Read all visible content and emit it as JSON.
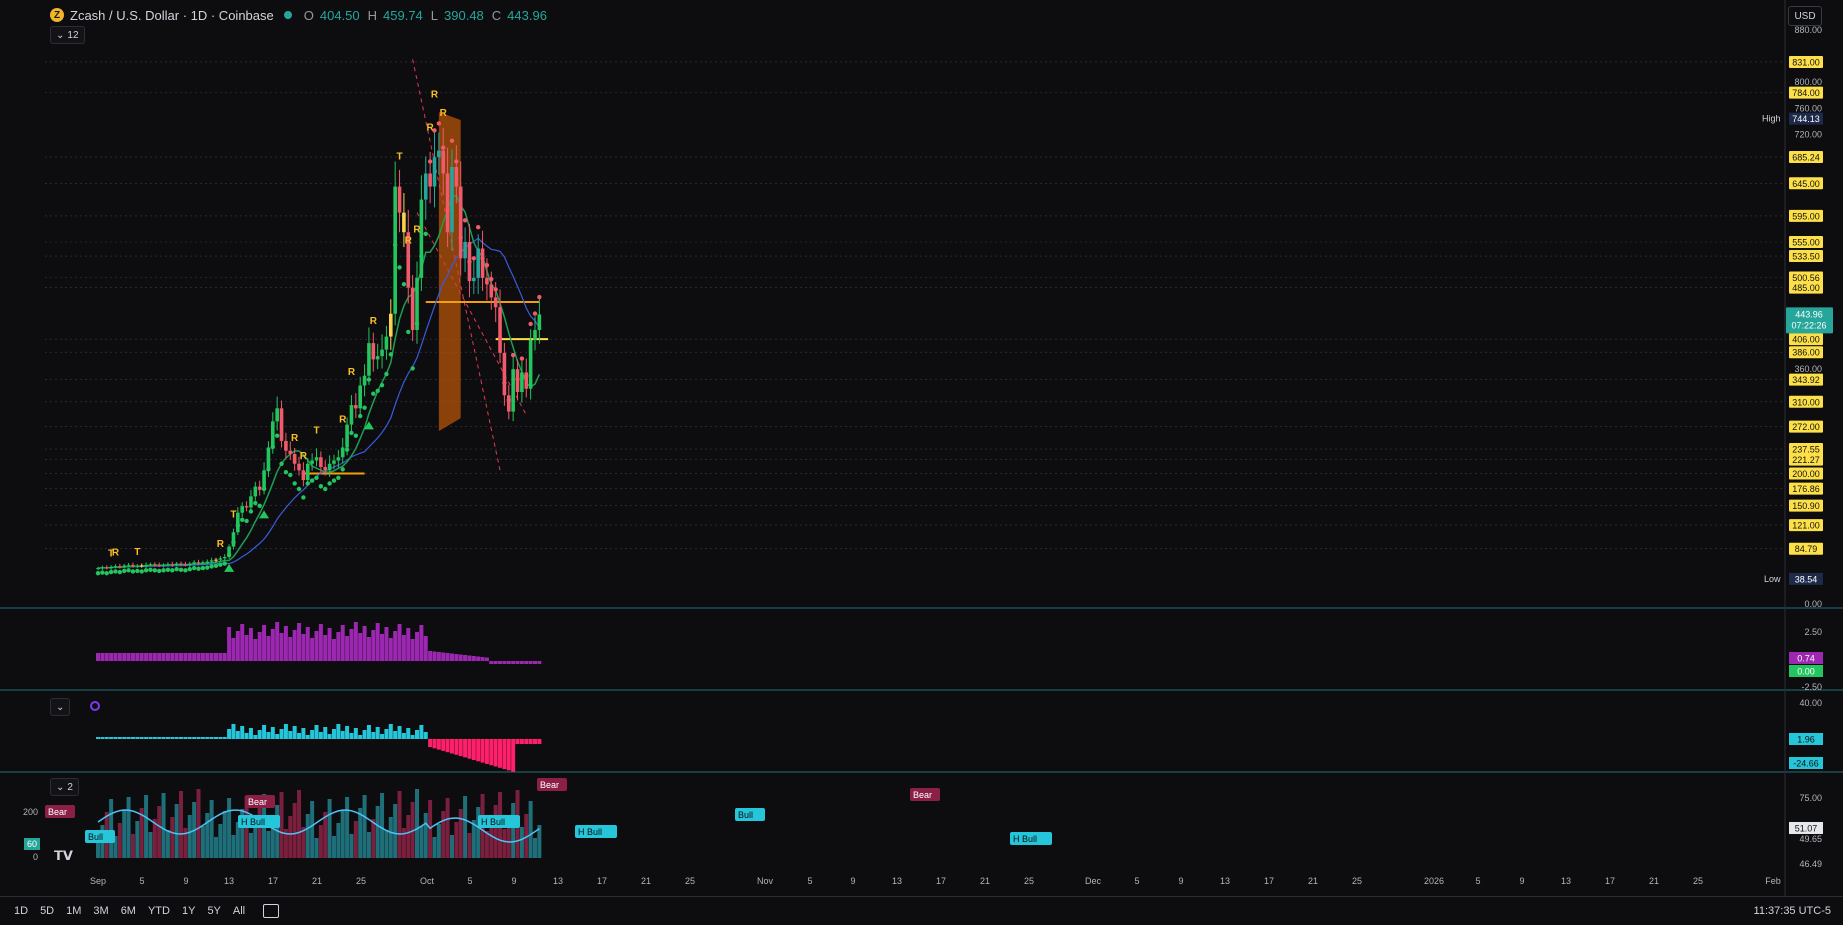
{
  "header": {
    "symbol": "Zcash / U.S. Dollar · 1D · Coinbase",
    "coin_glyph": "Z",
    "ohlc": [
      {
        "k": "O",
        "v": "404.50"
      },
      {
        "k": "H",
        "v": "459.74"
      },
      {
        "k": "L",
        "v": "390.48"
      },
      {
        "k": "C",
        "v": "443.96"
      }
    ],
    "indicators_count": "12",
    "osc_count": "2"
  },
  "currency": "USD",
  "price_axis": {
    "ticks": [
      "880.00",
      "800.00",
      "760.00",
      "720.00",
      "360.00",
      "0.00"
    ],
    "labels": [
      {
        "text": "831.00",
        "value": 831,
        "style": "yellow"
      },
      {
        "text": "784.00",
        "value": 784,
        "style": "yellow"
      },
      {
        "text": "685.24",
        "value": 685.24,
        "style": "yellow"
      },
      {
        "text": "645.00",
        "value": 645,
        "style": "yellow"
      },
      {
        "text": "595.00",
        "value": 595,
        "style": "yellow"
      },
      {
        "text": "555.00",
        "value": 555,
        "style": "yellow"
      },
      {
        "text": "533.50",
        "value": 533.5,
        "style": "yellow"
      },
      {
        "text": "500.56",
        "value": 500.56,
        "style": "yellow"
      },
      {
        "text": "485.00",
        "value": 485,
        "style": "yellow"
      },
      {
        "text": "406.00",
        "value": 406,
        "style": "yellow"
      },
      {
        "text": "386.00",
        "value": 386,
        "style": "yellow"
      },
      {
        "text": "343.92",
        "value": 343.92,
        "style": "yellow"
      },
      {
        "text": "310.00",
        "value": 310,
        "style": "yellow"
      },
      {
        "text": "272.00",
        "value": 272,
        "style": "yellow"
      },
      {
        "text": "237.55",
        "value": 237.55,
        "style": "yellow"
      },
      {
        "text": "221.27",
        "value": 221.27,
        "style": "yellow"
      },
      {
        "text": "200.00",
        "value": 200,
        "style": "yellow"
      },
      {
        "text": "176.86",
        "value": 176.86,
        "style": "yellow"
      },
      {
        "text": "150.90",
        "value": 150.9,
        "style": "yellow"
      },
      {
        "text": "121.00",
        "value": 121,
        "style": "yellow"
      },
      {
        "text": "84.79",
        "value": 84.79,
        "style": "yellow"
      }
    ],
    "price_label": {
      "text": "443.96",
      "value": 443.96
    },
    "countdown": "07:22:26",
    "high": {
      "tag": "High",
      "text": "744.13",
      "value": 744.13
    },
    "low": {
      "tag": "Low",
      "text": "38.54",
      "value": 38.54
    }
  },
  "time_axis": [
    "Sep",
    "5",
    "9",
    "13",
    "17",
    "21",
    "25",
    "Oct",
    "5",
    "9",
    "13",
    "17",
    "21",
    "25",
    "Nov",
    "5",
    "9",
    "13",
    "17",
    "21",
    "25",
    "Dec",
    "5",
    "9",
    "13",
    "17",
    "21",
    "25",
    "2026",
    "5",
    "9",
    "13",
    "17",
    "21",
    "25",
    "Feb"
  ],
  "indicator_panes": {
    "vol_ticks": [
      "2.50",
      "-2.50"
    ],
    "vol_labels": [
      {
        "text": "0.74",
        "style": "purple"
      },
      {
        "text": "0.00",
        "style": "green"
      }
    ],
    "macd_ticks": [
      "40.00"
    ],
    "macd_labels": [
      {
        "text": "1.96",
        "style": "cyan"
      },
      {
        "text": "-24.66",
        "style": "cyan"
      }
    ],
    "osc_ticks": [
      "75.00",
      "49.65",
      "46.49"
    ],
    "osc_labels": [
      {
        "text": "51.07",
        "style": "white"
      }
    ],
    "osc_left_ticks": [
      "200",
      "0"
    ],
    "osc_left_label": "60",
    "div_tags": [
      {
        "text": "Bear",
        "kind": "bear"
      },
      {
        "text": "Bull",
        "kind": "bull"
      },
      {
        "text": "Bear",
        "kind": "bear"
      },
      {
        "text": "H Bull",
        "kind": "bull"
      },
      {
        "text": "H Bull",
        "kind": "bull"
      },
      {
        "text": "Bear",
        "kind": "bear"
      },
      {
        "text": "H Bull",
        "kind": "bull"
      },
      {
        "text": "Bull",
        "kind": "bull"
      },
      {
        "text": "Bear",
        "kind": "bear"
      },
      {
        "text": "H Bull",
        "kind": "bull"
      }
    ]
  },
  "signal_letters": [
    "T",
    "R",
    "T",
    "R",
    "T",
    "R",
    "R",
    "T",
    "R",
    "R",
    "R",
    "T",
    "R",
    "R",
    "R",
    "R",
    "R"
  ],
  "bottom_bar": {
    "ranges": [
      "1D",
      "5D",
      "1M",
      "3M",
      "6M",
      "YTD",
      "1Y",
      "5Y",
      "All"
    ],
    "clock": "11:37:35 UTC-5"
  },
  "colors": {
    "up": "#26a69a",
    "up_bright": "#22c55e",
    "down": "#f05a6a",
    "highlight": "#fcd34d",
    "ema": "#1f9d55",
    "ma": "#3b5bdb",
    "level": "#f59e0b",
    "cloud": "#b45309",
    "axis_label": "#fde047",
    "vol": "#9c27b0",
    "macd_up": "#26c6da",
    "macd_dn": "#ff1f6b"
  },
  "chart_data": {
    "type": "candlestick",
    "title": "Zcash / U.S. Dollar · 1D · Coinbase",
    "x": [
      "Sep 1",
      "Sep 2",
      "Sep 3",
      "Sep 4",
      "Sep 5",
      "Sep 6",
      "Sep 7",
      "Sep 8",
      "Sep 9",
      "Sep 10",
      "Sep 11",
      "Sep 12",
      "Sep 13",
      "Sep 14",
      "Sep 15",
      "Sep 16",
      "Sep 17",
      "Sep 18",
      "Sep 19",
      "Sep 20",
      "Sep 21",
      "Sep 22",
      "Sep 23",
      "Sep 24",
      "Sep 25",
      "Sep 26",
      "Sep 27",
      "Sep 28",
      "Sep 29",
      "Sep 30",
      "Oct 1",
      "Oct 2",
      "Oct 3",
      "Oct 4",
      "Oct 5",
      "Oct 6",
      "Oct 7",
      "Oct 8",
      "Oct 9",
      "Oct 10",
      "Oct 11",
      "Oct 12",
      "Oct 13",
      "Oct 14",
      "Oct 15",
      "Oct 16",
      "Oct 17",
      "Oct 18",
      "Oct 19",
      "Oct 20",
      "Oct 21",
      "Oct 22",
      "Oct 23",
      "Oct 24",
      "Oct 25",
      "Oct 26",
      "Oct 27",
      "Oct 28",
      "Oct 29",
      "Oct 30",
      "Oct 31",
      "Nov 1",
      "Nov 2",
      "Nov 3",
      "Nov 4",
      "Nov 5",
      "Nov 6",
      "Nov 7",
      "Nov 8",
      "Nov 9",
      "Nov 10",
      "Nov 11",
      "Nov 12",
      "Nov 13",
      "Nov 14",
      "Nov 15",
      "Nov 16",
      "Nov 17",
      "Nov 18",
      "Nov 19",
      "Nov 20",
      "Nov 21",
      "Nov 22",
      "Nov 23",
      "Nov 24",
      "Nov 25",
      "Nov 26",
      "Nov 27",
      "Nov 28",
      "Nov 29",
      "Nov 30",
      "Dec 1",
      "Dec 2",
      "Dec 3",
      "Dec 4",
      "Dec 5",
      "Dec 6",
      "Dec 7",
      "Dec 8",
      "Dec 9",
      "Dec 10",
      "Dec 11"
    ],
    "close": [
      55,
      56,
      55,
      57,
      58,
      57,
      59,
      60,
      58,
      59,
      58,
      60,
      61,
      60,
      59,
      60,
      61,
      60,
      62,
      61,
      60,
      62,
      64,
      63,
      64,
      65,
      67,
      68,
      70,
      72,
      88,
      110,
      140,
      150,
      148,
      165,
      180,
      175,
      205,
      240,
      280,
      300,
      250,
      235,
      230,
      215,
      205,
      190,
      215,
      220,
      225,
      210,
      205,
      215,
      220,
      225,
      240,
      275,
      305,
      300,
      335,
      350,
      400,
      375,
      380,
      390,
      410,
      445,
      640,
      600,
      570,
      485,
      420,
      500,
      620,
      660,
      640,
      685,
      695,
      660,
      570,
      670,
      640,
      530,
      555,
      495,
      500,
      545,
      500,
      490,
      470,
      455,
      385,
      320,
      295,
      360,
      325,
      355,
      330,
      405,
      420,
      444
    ],
    "ylim": [
      0,
      880
    ],
    "levels": [
      {
        "value": 463,
        "x": [
          "Nov 15",
          "Dec 11"
        ],
        "color": "#f59e0b"
      },
      {
        "value": 406,
        "x": [
          "Dec 1",
          "Dec 13"
        ],
        "color": "#fde047"
      },
      {
        "value": 200,
        "x": [
          "Oct 18",
          "Nov 1"
        ],
        "color": "#f59e0b"
      }
    ]
  }
}
